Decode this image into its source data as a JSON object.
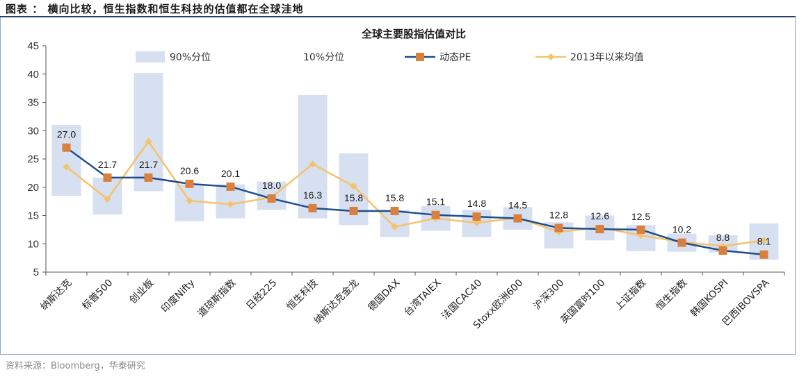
{
  "header": {
    "title": "图表 ： 横向比较，恒生指数和恒生科技的估值都在全球洼地"
  },
  "footer": {
    "source": "资料来源：Bloomberg，华泰研究"
  },
  "chart_data": {
    "type": "line",
    "title": "全球主要股指估值对比",
    "categories": [
      "纳斯达克",
      "标普500",
      "创业板",
      "印度Nifty",
      "道琼斯指数",
      "日经225",
      "恒生科技",
      "纳斯达克金龙",
      "德国DAX",
      "台湾TAIEX",
      "法国CAC40",
      "Stoxx欧洲600",
      "沪深300",
      "英国富时100",
      "上证指数",
      "恒生指数",
      "韩国KOSPI",
      "巴西IBOVSPA"
    ],
    "ylim": [
      5,
      45
    ],
    "yticks": [
      5,
      10,
      15,
      20,
      25,
      30,
      35,
      40,
      45
    ],
    "legend": [
      "90%分位",
      "10%分位",
      "动态PE",
      "2013年以来均值"
    ],
    "legend_position": "top",
    "band_color": "#d6e0f0",
    "series": [
      {
        "name": "90%分位",
        "values": [
          31.0,
          21.7,
          40.2,
          20.5,
          20.5,
          21.0,
          36.3,
          26.0,
          16.0,
          16.7,
          16.0,
          16.5,
          13.8,
          15.0,
          13.3,
          11.8,
          11.5,
          13.6
        ]
      },
      {
        "name": "10%分位",
        "values": [
          18.5,
          15.2,
          19.3,
          14.0,
          14.5,
          16.0,
          14.5,
          13.3,
          11.2,
          12.3,
          11.2,
          12.5,
          9.2,
          10.6,
          8.7,
          8.6,
          8.5,
          7.2
        ]
      },
      {
        "name": "动态PE",
        "color": "#1f4e8c",
        "marker_color": "#d9803f",
        "values": [
          27.0,
          21.7,
          21.7,
          20.6,
          20.1,
          18.0,
          16.3,
          15.8,
          15.8,
          15.1,
          14.8,
          14.5,
          12.8,
          12.6,
          12.5,
          10.2,
          8.8,
          8.1
        ]
      },
      {
        "name": "2013年以来均值",
        "color": "#f5c26b",
        "values": [
          23.6,
          17.9,
          28.1,
          17.6,
          17.0,
          18.2,
          24.1,
          20.2,
          13.0,
          14.5,
          13.7,
          14.6,
          12.1,
          12.9,
          11.5,
          10.3,
          9.6,
          10.6
        ]
      }
    ],
    "data_labels": [
      "27.0",
      "21.7",
      "21.7",
      "20.6",
      "20.1",
      "18.0",
      "16.3",
      "15.8",
      "15.8",
      "15.1",
      "14.8",
      "14.5",
      "12.8",
      "12.6",
      "12.5",
      "10.2",
      "8.8",
      "8.1"
    ]
  }
}
